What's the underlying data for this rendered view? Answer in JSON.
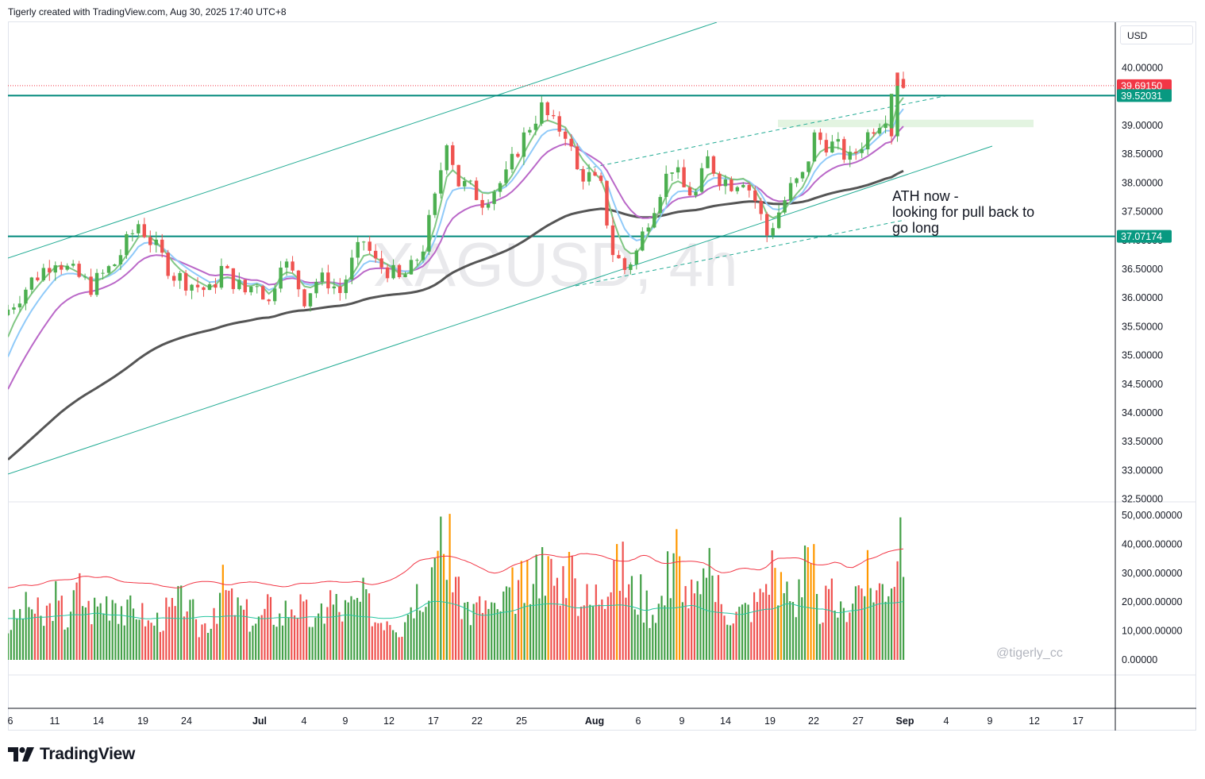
{
  "header": {
    "created_by": "Tigerly created with TradingView.com, Aug 30, 2025 17:40 UTC+8"
  },
  "currency": "USD",
  "footer": {
    "brand": "TradingView"
  },
  "chart_data": {
    "type": "candlestick",
    "symbol_watermark": "XAGUSD, 4h",
    "annotation": [
      "ATH now -",
      "looking for pull back to",
      "go long"
    ],
    "signature": "@tigerly_cc",
    "price_axis": {
      "ylim": [
        32.5,
        40.4
      ],
      "ticks": [
        "40.00000",
        "39.00000",
        "38.50000",
        "38.00000",
        "37.50000",
        "37.00000",
        "36.50000",
        "36.00000",
        "35.50000",
        "35.00000",
        "34.50000",
        "34.00000",
        "33.50000",
        "33.00000",
        "32.50000"
      ],
      "tick_values": [
        40.0,
        39.0,
        38.5,
        38.0,
        37.5,
        37.0,
        36.5,
        36.0,
        35.5,
        35.0,
        34.5,
        34.0,
        33.5,
        33.0,
        32.5
      ]
    },
    "volume_axis": {
      "ylim": [
        0,
        52000
      ],
      "ticks": [
        "50,000.00000",
        "40,000.00000",
        "30,000.00000",
        "20,000.00000",
        "10,000.00000",
        "0.00000"
      ],
      "tick_values": [
        50000,
        40000,
        30000,
        20000,
        10000,
        0
      ]
    },
    "x_axis": {
      "labels": [
        "6",
        "11",
        "14",
        "19",
        "24",
        "Jul",
        "4",
        "9",
        "12",
        "17",
        "22",
        "25",
        "Aug",
        "6",
        "9",
        "14",
        "19",
        "22",
        "27",
        "Sep",
        "4",
        "9",
        "12",
        "17"
      ],
      "bold": [
        "Jul",
        "Aug",
        "Sep"
      ]
    },
    "price_tags": [
      {
        "label": "39.69150",
        "value": 39.6915,
        "color": "#f23645"
      },
      {
        "label": "39.52031",
        "value": 39.52031,
        "color": "#089981"
      },
      {
        "label": "37.07174",
        "value": 37.07174,
        "color": "#089981"
      }
    ],
    "horizontal_levels": [
      39.52031,
      37.07174
    ],
    "current_price": 39.6915,
    "resistance_zone": [
      38.97,
      39.1
    ],
    "colors": {
      "up": "#4caf50",
      "down": "#ef5350",
      "channel": "#22ab94",
      "ema_fast": "#81c784",
      "ema_mid": "#90caf9",
      "ema_slow": "#ba68c8",
      "ma_long": "#555555",
      "vol_up": "#43a047",
      "vol_down": "#ef5350",
      "vol_high": "#ff9800",
      "vol_ma_red": "#f23645",
      "vol_ma_green": "#26c6a0"
    },
    "price_path": [
      [
        0,
        35.8
      ],
      [
        4,
        36.3
      ],
      [
        8,
        36.7
      ],
      [
        10,
        36.5
      ],
      [
        14,
        36.2
      ],
      [
        18,
        36.6
      ],
      [
        22,
        37.3
      ],
      [
        24,
        37.0
      ],
      [
        28,
        36.4
      ],
      [
        32,
        36.2
      ],
      [
        34,
        36.1
      ],
      [
        36,
        36.5
      ],
      [
        38,
        36.3
      ],
      [
        40,
        36.1
      ],
      [
        42,
        36.3
      ],
      [
        44,
        35.9
      ],
      [
        46,
        36.7
      ],
      [
        48,
        36.4
      ],
      [
        50,
        36.0
      ],
      [
        52,
        36.3
      ],
      [
        54,
        36.3
      ],
      [
        56,
        36.1
      ],
      [
        58,
        36.6
      ],
      [
        60,
        37.0
      ],
      [
        62,
        36.6
      ],
      [
        64,
        36.5
      ],
      [
        66,
        36.3
      ],
      [
        68,
        36.5
      ],
      [
        70,
        36.9
      ],
      [
        72,
        37.7
      ],
      [
        74,
        38.8
      ],
      [
        76,
        38.0
      ],
      [
        78,
        37.9
      ],
      [
        80,
        37.7
      ],
      [
        82,
        37.9
      ],
      [
        84,
        38.1
      ],
      [
        86,
        38.6
      ],
      [
        88,
        39.0
      ],
      [
        90,
        39.3
      ],
      [
        92,
        39.0
      ],
      [
        94,
        38.9
      ],
      [
        96,
        38.2
      ],
      [
        98,
        38.1
      ],
      [
        100,
        37.9
      ],
      [
        102,
        36.8
      ],
      [
        104,
        36.5
      ],
      [
        106,
        36.8
      ],
      [
        108,
        37.4
      ],
      [
        110,
        37.9
      ],
      [
        112,
        38.3
      ],
      [
        114,
        37.9
      ],
      [
        116,
        37.8
      ],
      [
        118,
        38.4
      ],
      [
        120,
        38.1
      ],
      [
        122,
        38.0
      ],
      [
        124,
        38.1
      ],
      [
        126,
        37.7
      ],
      [
        128,
        37.1
      ],
      [
        130,
        37.5
      ],
      [
        132,
        37.9
      ],
      [
        134,
        38.1
      ],
      [
        136,
        38.8
      ],
      [
        138,
        38.7
      ],
      [
        140,
        38.6
      ],
      [
        142,
        38.4
      ],
      [
        144,
        38.7
      ],
      [
        146,
        39.0
      ],
      [
        148,
        39.2
      ],
      [
        149,
        38.9
      ],
      [
        150,
        39.9
      ],
      [
        151,
        39.69
      ]
    ],
    "volume_values": [
      [
        0,
        12000
      ],
      [
        2,
        18000
      ],
      [
        4,
        22000
      ],
      [
        6,
        15000
      ],
      [
        8,
        24000
      ],
      [
        10,
        16000
      ],
      [
        12,
        28000
      ],
      [
        14,
        20000
      ],
      [
        16,
        22000
      ],
      [
        18,
        26000
      ],
      [
        20,
        18000
      ],
      [
        22,
        21000
      ],
      [
        24,
        14000
      ],
      [
        26,
        17000
      ],
      [
        28,
        20000
      ],
      [
        30,
        24000
      ],
      [
        32,
        12000
      ],
      [
        34,
        16000
      ],
      [
        36,
        28000
      ],
      [
        38,
        22000
      ],
      [
        40,
        18000
      ],
      [
        42,
        15000
      ],
      [
        44,
        20000
      ],
      [
        46,
        17000
      ],
      [
        48,
        23000
      ],
      [
        50,
        18000
      ],
      [
        52,
        14000
      ],
      [
        54,
        25000
      ],
      [
        56,
        19000
      ],
      [
        58,
        21000
      ],
      [
        60,
        24000
      ],
      [
        62,
        16000
      ],
      [
        64,
        18000
      ],
      [
        66,
        13000
      ],
      [
        68,
        25000
      ],
      [
        70,
        30000
      ],
      [
        72,
        42000
      ],
      [
        74,
        46000
      ],
      [
        76,
        24000
      ],
      [
        78,
        19000
      ],
      [
        80,
        22000
      ],
      [
        82,
        18000
      ],
      [
        84,
        26000
      ],
      [
        86,
        30000
      ],
      [
        88,
        28000
      ],
      [
        90,
        38000
      ],
      [
        92,
        30000
      ],
      [
        94,
        36000
      ],
      [
        96,
        26000
      ],
      [
        98,
        22000
      ],
      [
        100,
        30000
      ],
      [
        102,
        45000
      ],
      [
        104,
        28000
      ],
      [
        106,
        26000
      ],
      [
        108,
        20000
      ],
      [
        110,
        24000
      ],
      [
        112,
        44000
      ],
      [
        114,
        26000
      ],
      [
        116,
        24000
      ],
      [
        118,
        33000
      ],
      [
        120,
        22000
      ],
      [
        122,
        18000
      ],
      [
        124,
        20000
      ],
      [
        126,
        24000
      ],
      [
        128,
        36000
      ],
      [
        130,
        30000
      ],
      [
        132,
        22000
      ],
      [
        134,
        48000
      ],
      [
        136,
        20000
      ],
      [
        138,
        24000
      ],
      [
        140,
        18000
      ],
      [
        142,
        28000
      ],
      [
        144,
        32000
      ],
      [
        146,
        28000
      ],
      [
        148,
        33000
      ],
      [
        150,
        42000
      ],
      [
        151,
        19000
      ]
    ]
  }
}
